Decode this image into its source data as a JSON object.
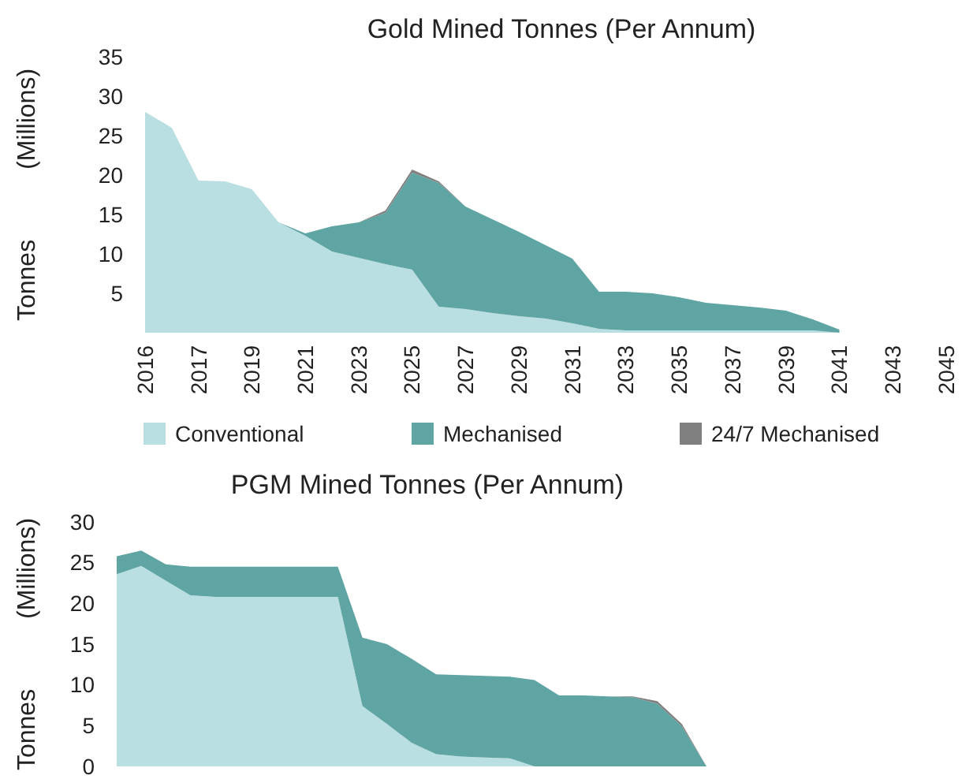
{
  "chart_data": [
    {
      "type": "area",
      "title": "Gold Mined Tonnes (Per Annum)",
      "ylabel": "Tonnes (Millions)",
      "stacked": true,
      "legend": "bottom",
      "categories": [
        "2016",
        null,
        "2017",
        null,
        "2019",
        null,
        "2021",
        null,
        "2023",
        null,
        "2025",
        null,
        "2027",
        null,
        "2029",
        null,
        "2031",
        null,
        "2033",
        null,
        "2035",
        null,
        "2037",
        null,
        "2039",
        null,
        "2041",
        null,
        "2043",
        null,
        "2045"
      ],
      "ylim": [
        0,
        35
      ],
      "yticks": [
        5,
        10,
        15,
        20,
        25,
        30,
        35
      ],
      "series": [
        {
          "name": "Conventional",
          "color": "#b9dfe2",
          "values": [
            28,
            26,
            19.3,
            19.2,
            18.2,
            14,
            12.3,
            10.3,
            9.5,
            8.7,
            8,
            3.3,
            3,
            2.5,
            2.1,
            1.8,
            1.2,
            0.5,
            0.3,
            0.3,
            0.3,
            0.3,
            0.3,
            0.3,
            0.3,
            0.3,
            0,
            null,
            null,
            null,
            null
          ]
        },
        {
          "name": "Mechanised",
          "color": "#5fa5a3",
          "values": [
            null,
            null,
            null,
            null,
            null,
            0,
            0.3,
            3.2,
            4.5,
            6.5,
            12.3,
            15.7,
            13,
            11.9,
            10.7,
            9.3,
            8.2,
            4.7,
            4.9,
            4.7,
            4.2,
            3.5,
            3.2,
            2.9,
            2.5,
            1.4,
            0.4,
            null,
            null,
            null,
            null
          ]
        },
        {
          "name": "24/7 Mechanised",
          "color": "#808080",
          "values": [
            null,
            null,
            null,
            null,
            null,
            null,
            null,
            null,
            0,
            0.3,
            0.4,
            0.2,
            0,
            null,
            null,
            null,
            null,
            null,
            null,
            null,
            null,
            null,
            null,
            null,
            null,
            null,
            null,
            null,
            null,
            null,
            null
          ]
        }
      ]
    },
    {
      "type": "area",
      "title": "PGM Mined Tonnes (Per Annum)",
      "ylabel": "Tonnes (Millions)",
      "stacked": true,
      "tick_labels": "y",
      "categories": [
        null,
        null,
        null,
        null,
        null,
        null,
        null,
        null,
        null,
        null,
        null,
        null,
        null,
        null,
        null,
        null,
        null,
        null,
        null,
        null,
        null,
        null,
        null,
        null,
        null
      ],
      "ylim": [
        0,
        30
      ],
      "yticks": [
        0,
        5,
        10,
        15,
        20,
        25,
        30
      ],
      "series": [
        {
          "color": "#b9dfe2",
          "values": [
            23.6,
            24.6,
            22.8,
            21,
            20.8,
            20.8,
            20.8,
            20.8,
            20.8,
            20.8,
            7.4,
            5.2,
            2.9,
            1.5,
            1.2,
            1.1,
            1,
            0,
            0,
            0,
            0,
            0,
            0,
            0,
            0
          ]
        },
        {
          "color": "#5fa5a3",
          "values": [
            2.2,
            1.9,
            2,
            3.5,
            3.7,
            3.7,
            3.7,
            3.7,
            3.7,
            3.7,
            8.4,
            9.8,
            10.3,
            9.8,
            10,
            10,
            10,
            10.6,
            8.7,
            8.7,
            8.6,
            8.5,
            7.7,
            4.9,
            0
          ]
        },
        {
          "color": "#808080",
          "values": [
            null,
            null,
            null,
            null,
            null,
            null,
            null,
            null,
            null,
            null,
            null,
            null,
            null,
            null,
            null,
            null,
            null,
            null,
            null,
            null,
            0,
            0.1,
            0.3,
            0.3,
            0
          ]
        }
      ]
    }
  ]
}
